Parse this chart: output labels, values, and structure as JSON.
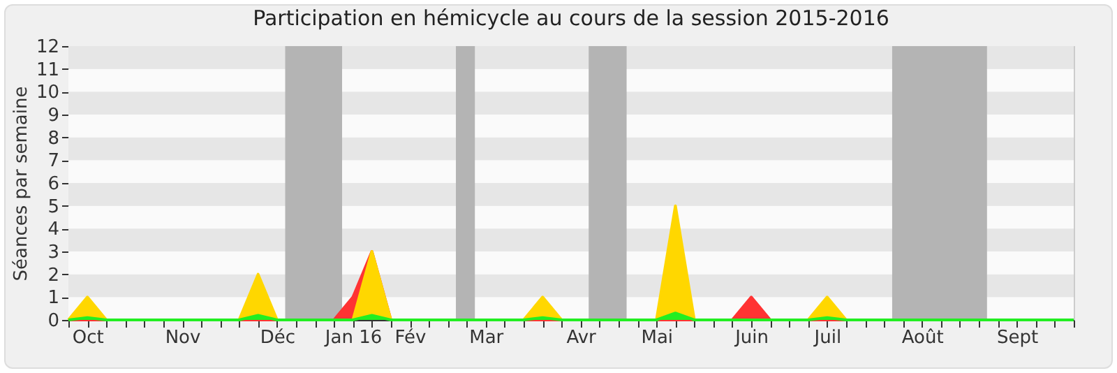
{
  "chart_data": {
    "type": "area",
    "title": "Participation en hémicycle au cours de la session 2015-2016",
    "ylabel": "Séances par semaine",
    "x": [
      "2015-09-30",
      "2015-10-07",
      "2015-10-14",
      "2015-10-21",
      "2015-10-28",
      "2015-11-04",
      "2015-11-11",
      "2015-11-18",
      "2015-11-25",
      "2015-12-02",
      "2015-12-09",
      "2015-12-16",
      "2015-12-23",
      "2015-12-30",
      "2016-01-06",
      "2016-01-13",
      "2016-01-20",
      "2016-01-27",
      "2016-02-03",
      "2016-02-10",
      "2016-02-17",
      "2016-02-24",
      "2016-03-02",
      "2016-03-09",
      "2016-03-16",
      "2016-03-23",
      "2016-03-30",
      "2016-04-06",
      "2016-04-13",
      "2016-04-20",
      "2016-04-27",
      "2016-05-04",
      "2016-05-11",
      "2016-05-18",
      "2016-05-25",
      "2016-06-01",
      "2016-06-08",
      "2016-06-15",
      "2016-06-22",
      "2016-06-29",
      "2016-07-06",
      "2016-07-13",
      "2016-07-20",
      "2016-07-27",
      "2016-08-03",
      "2016-08-10",
      "2016-08-17",
      "2016-08-24",
      "2016-08-31",
      "2016-09-07",
      "2016-09-14",
      "2016-09-21",
      "2016-09-28",
      "2016-10-05"
    ],
    "series": [
      {
        "color": "#ff3333",
        "values": [
          0,
          0,
          0,
          0,
          0,
          0,
          0,
          0,
          0,
          0,
          0,
          0,
          0,
          0,
          0,
          1,
          3,
          0,
          0,
          0,
          0,
          0,
          0,
          0,
          0,
          0,
          0,
          0,
          0,
          0,
          0,
          0,
          0,
          0,
          0,
          0,
          1,
          0,
          0,
          0,
          0,
          0,
          0,
          0,
          0,
          0,
          0,
          0,
          0,
          0,
          0,
          0,
          0,
          0
        ]
      },
      {
        "color": "#ffd700",
        "values": [
          0,
          1,
          0,
          0,
          0,
          0,
          0,
          0,
          0,
          0,
          2,
          0,
          0,
          0,
          0,
          0,
          3,
          0,
          0,
          0,
          0,
          0,
          0,
          0,
          0,
          1,
          0,
          0,
          0,
          0,
          0,
          0,
          5,
          0,
          0,
          0,
          0,
          0,
          0,
          0,
          1,
          0,
          0,
          0,
          0,
          0,
          0,
          0,
          0,
          0,
          0,
          0,
          0,
          0
        ]
      },
      {
        "color": "#22ee22",
        "values": [
          0,
          0.1,
          0,
          0,
          0,
          0,
          0,
          0,
          0,
          0,
          0.2,
          0,
          0,
          0,
          0,
          0,
          0.2,
          0,
          0,
          0,
          0,
          0,
          0,
          0,
          0,
          0.1,
          0,
          0,
          0,
          0,
          0,
          0,
          0.3,
          0,
          0,
          0,
          0,
          0,
          0,
          0,
          0.1,
          0,
          0,
          0,
          0,
          0,
          0,
          0,
          0,
          0,
          0,
          0,
          0,
          0
        ]
      }
    ],
    "xlim": [
      "2015-09-30",
      "2016-10-05"
    ],
    "xticks": [
      {
        "value": "2015-09-30",
        "label": null
      },
      {
        "value": "2015-10-07",
        "label": "Oct"
      },
      {
        "value": "2015-10-14",
        "label": null
      },
      {
        "value": "2015-10-21",
        "label": null
      },
      {
        "value": "2015-10-28",
        "label": null
      },
      {
        "value": "2015-11-04",
        "label": null
      },
      {
        "value": "2015-11-11",
        "label": "Nov"
      },
      {
        "value": "2015-11-18",
        "label": null
      },
      {
        "value": "2015-11-25",
        "label": null
      },
      {
        "value": "2015-12-02",
        "label": null
      },
      {
        "value": "2015-12-09",
        "label": null
      },
      {
        "value": "2015-12-16",
        "label": "Déc"
      },
      {
        "value": "2015-12-23",
        "label": null
      },
      {
        "value": "2015-12-30",
        "label": null
      },
      {
        "value": "2016-01-06",
        "label": null
      },
      {
        "value": "2016-01-13",
        "label": "Jan 16"
      },
      {
        "value": "2016-01-20",
        "label": null
      },
      {
        "value": "2016-01-27",
        "label": null
      },
      {
        "value": "2016-02-03",
        "label": "Fév"
      },
      {
        "value": "2016-02-10",
        "label": null
      },
      {
        "value": "2016-02-17",
        "label": null
      },
      {
        "value": "2016-02-24",
        "label": null
      },
      {
        "value": "2016-03-02",
        "label": "Mar"
      },
      {
        "value": "2016-03-09",
        "label": null
      },
      {
        "value": "2016-03-16",
        "label": null
      },
      {
        "value": "2016-03-23",
        "label": null
      },
      {
        "value": "2016-03-30",
        "label": null
      },
      {
        "value": "2016-04-06",
        "label": "Avr"
      },
      {
        "value": "2016-04-13",
        "label": null
      },
      {
        "value": "2016-04-20",
        "label": null
      },
      {
        "value": "2016-04-27",
        "label": null
      },
      {
        "value": "2016-05-04",
        "label": "Mai"
      },
      {
        "value": "2016-05-11",
        "label": null
      },
      {
        "value": "2016-05-18",
        "label": null
      },
      {
        "value": "2016-05-25",
        "label": null
      },
      {
        "value": "2016-06-01",
        "label": null
      },
      {
        "value": "2016-06-08",
        "label": "Juin"
      },
      {
        "value": "2016-06-15",
        "label": null
      },
      {
        "value": "2016-06-22",
        "label": null
      },
      {
        "value": "2016-06-29",
        "label": null
      },
      {
        "value": "2016-07-06",
        "label": "Juil"
      },
      {
        "value": "2016-07-13",
        "label": null
      },
      {
        "value": "2016-07-20",
        "label": null
      },
      {
        "value": "2016-07-27",
        "label": null
      },
      {
        "value": "2016-08-03",
        "label": null
      },
      {
        "value": "2016-08-10",
        "label": "Août"
      },
      {
        "value": "2016-08-17",
        "label": null
      },
      {
        "value": "2016-08-24",
        "label": null
      },
      {
        "value": "2016-08-31",
        "label": null
      },
      {
        "value": "2016-09-07",
        "label": null
      },
      {
        "value": "2016-09-14",
        "label": "Sept"
      },
      {
        "value": "2016-09-21",
        "label": null
      },
      {
        "value": "2016-09-28",
        "label": null
      },
      {
        "value": "2016-10-05",
        "label": null
      }
    ],
    "ylim": [
      0,
      12
    ],
    "yticks": [
      0,
      1,
      2,
      3,
      4,
      5,
      6,
      7,
      8,
      9,
      10,
      11,
      12
    ],
    "bands": [
      {
        "axis": "x",
        "from": "2015-12-19",
        "to": "2016-01-09",
        "color": "#b4b4b4"
      },
      {
        "axis": "x",
        "from": "2016-02-20",
        "to": "2016-02-27",
        "color": "#b4b4b4"
      },
      {
        "axis": "x",
        "from": "2016-04-09",
        "to": "2016-04-23",
        "color": "#b4b4b4"
      },
      {
        "axis": "x",
        "from": "2016-07-30",
        "to": "2016-09-03",
        "color": "#b4b4b4"
      }
    ]
  }
}
